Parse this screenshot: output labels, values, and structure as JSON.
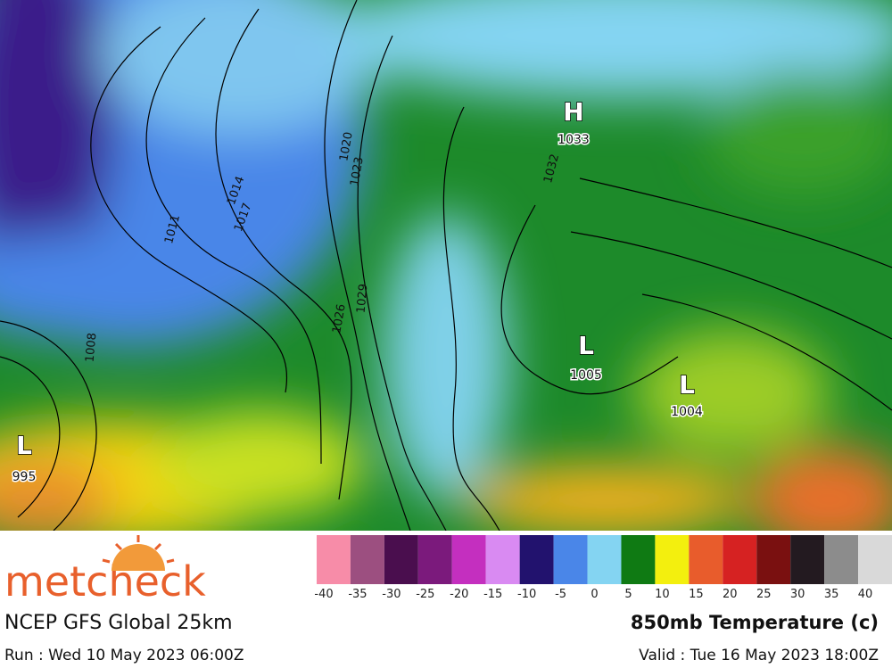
{
  "logo": "metcheck",
  "model": "NCEP GFS Global 25km",
  "run": "Run : Wed 10 May 2023 06:00Z",
  "title": "850mb Temperature (c)",
  "valid": "Valid : Tue 16 May 2023 18:00Z",
  "pressure_centers": [
    {
      "label": "H",
      "value": 1033
    },
    {
      "label": "L",
      "value": 1005
    },
    {
      "label": "L",
      "value": 1004
    },
    {
      "label": "L",
      "value": 995
    }
  ],
  "isobar_labels": [
    1011,
    1014,
    1017,
    1020,
    1023,
    1026,
    1029,
    1032,
    1008
  ],
  "scale": {
    "labels": [
      -40,
      -35,
      -30,
      -25,
      -20,
      -15,
      -10,
      -5,
      0,
      5,
      10,
      15,
      20,
      25,
      30,
      35,
      40
    ],
    "colors": [
      "#f78ca8",
      "#9c4f80",
      "#4a0e4e",
      "#7b1a7c",
      "#c42fbf",
      "#d98af2",
      "#22126e",
      "#4a86e8",
      "#84d4f2",
      "#0f7a13",
      "#f3ef0e",
      "#e85c2c",
      "#d62222",
      "#7a1010",
      "#231a20",
      "#8c8c8c",
      "#d9d9d9"
    ]
  }
}
